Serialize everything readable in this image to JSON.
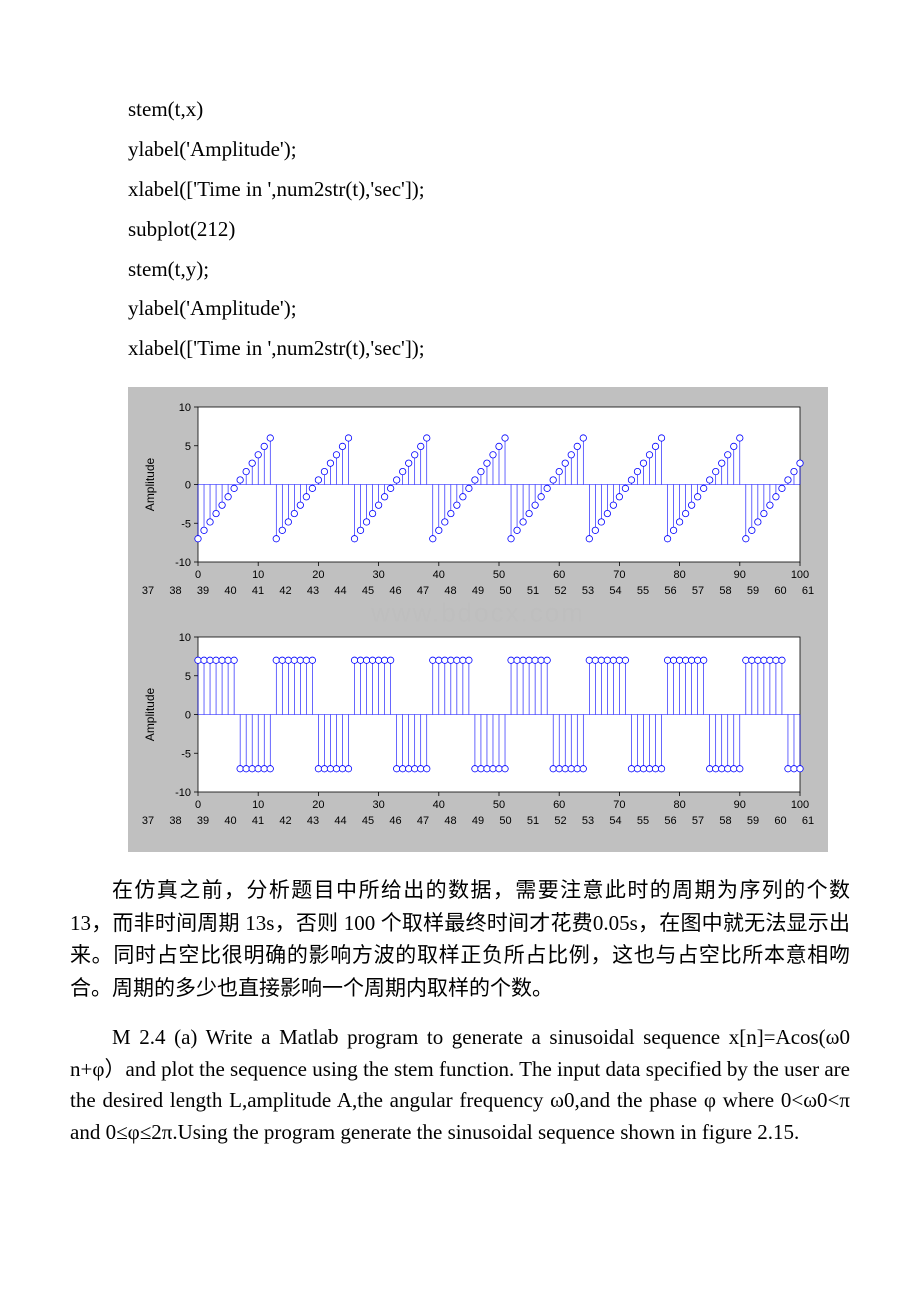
{
  "code_lines": [
    "stem(t,x)",
    "ylabel('Amplitude');",
    "xlabel(['Time in ',num2str(t),'sec']);",
    "subplot(212)",
    "stem(t,y);",
    "ylabel('Amplitude');",
    "xlabel(['Time in ',num2str(t),'sec']);"
  ],
  "chart1": {
    "type": "stem",
    "ylabel": "Amplitude",
    "xlim": [
      0,
      100
    ],
    "ylim": [
      -10,
      10
    ],
    "xticks": [
      0,
      10,
      20,
      30,
      40,
      50,
      60,
      70,
      80,
      90,
      100
    ],
    "yticks": [
      -10,
      -5,
      0,
      5,
      10
    ],
    "xtick_labels": [
      "0",
      "10",
      "20",
      "30",
      "40",
      "50",
      "60",
      "70",
      "80",
      "90",
      "100"
    ],
    "ytick_labels": [
      "-10",
      "-5",
      "0",
      "5",
      "10"
    ],
    "secondary_xticks": [
      37,
      38,
      39,
      40,
      41,
      42,
      43,
      44,
      45,
      46,
      47,
      48,
      49,
      50,
      51,
      52,
      53,
      54,
      55,
      56,
      57,
      58,
      59,
      60,
      61
    ],
    "period": 13,
    "amplitude_low": -7,
    "amplitude_high": 6,
    "stem_color": "#0000ff",
    "marker_color": "#0000ff",
    "marker_fill": "#ffffff",
    "marker_size": 3.2,
    "line_width": 0.6,
    "background": "#ffffff",
    "panel_background": "#c0c0c0",
    "axis_color": "#000000",
    "tick_fontsize": 11,
    "ylabel_fontsize": 12
  },
  "chart2": {
    "type": "stem",
    "ylabel": "Amplitude",
    "xlim": [
      0,
      100
    ],
    "ylim": [
      -10,
      10
    ],
    "xticks": [
      0,
      10,
      20,
      30,
      40,
      50,
      60,
      70,
      80,
      90,
      100
    ],
    "yticks": [
      -10,
      -5,
      0,
      5,
      10
    ],
    "xtick_labels": [
      "0",
      "10",
      "20",
      "30",
      "40",
      "50",
      "60",
      "70",
      "80",
      "90",
      "100"
    ],
    "ytick_labels": [
      "-10",
      "-5",
      "0",
      "5",
      "10"
    ],
    "secondary_xticks": [
      37,
      38,
      39,
      40,
      41,
      42,
      43,
      44,
      45,
      46,
      47,
      48,
      49,
      50,
      51,
      52,
      53,
      54,
      55,
      56,
      57,
      58,
      59,
      60,
      61
    ],
    "period": 13,
    "high_value": 7,
    "low_value": -7,
    "high_count": 7,
    "stem_color": "#0000ff",
    "marker_color": "#0000ff",
    "marker_fill": "#ffffff",
    "marker_size": 3.2,
    "line_width": 0.6,
    "background": "#ffffff",
    "panel_background": "#c0c0c0",
    "axis_color": "#000000",
    "tick_fontsize": 11,
    "ylabel_fontsize": 12
  },
  "watermark": "www.bdocx.com",
  "paragraph_cn": "在仿真之前，分析题目中所给出的数据，需要注意此时的周期为序列的个数 13，而非时间周期 13s，否则 100 个取样最终时间才花费0.05s，在图中就无法显示出来。同时占空比很明确的影响方波的取样正负所占比例，这也与占空比所本意相吻合。周期的多少也直接影响一个周期内取样的个数。",
  "paragraph_en": "M 2.4 (a) Write a Matlab program to generate a sinusoidal sequence x[n]=Acos(ω0 n+φ）and plot the sequence using the stem function. The input data specified by the user are the desired length L,amplitude A,the angular frequency ω0,and the phase φ where 0<ω0<π and 0≤φ≤2π.Using the program generate the sinusoidal sequence shown in figure 2.15."
}
